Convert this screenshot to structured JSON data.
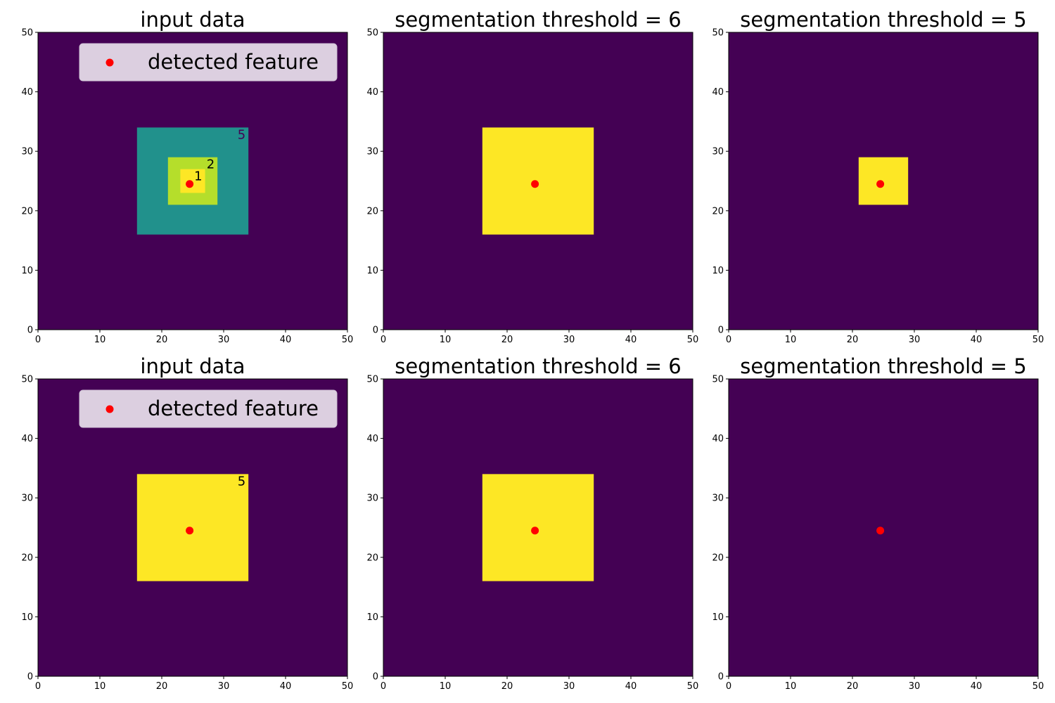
{
  "figure": {
    "layout": "2x3 grid of heatmap panels"
  },
  "colors": {
    "background": "#440154",
    "level_5": "#21918c",
    "level_2": "#b5de2b",
    "level_1": "#fde725",
    "segment": "#fde725",
    "feature": "#ff0000",
    "legend_bg": "#dccfe0",
    "label_dark": "#440154",
    "label_light": "#000000"
  },
  "legend": {
    "label": "detected feature",
    "placement": "upper-right"
  },
  "chart_data": [
    {
      "type": "heatmap",
      "title": "input data",
      "xlim": [
        0,
        50
      ],
      "ylim": [
        0,
        50
      ],
      "xticks": [
        "0",
        "10",
        "20",
        "30",
        "40",
        "50"
      ],
      "yticks": [
        "0",
        "10",
        "20",
        "30",
        "40",
        "50"
      ],
      "grid": false,
      "legend": true,
      "regions": [
        {
          "x": [
            16,
            34
          ],
          "y": [
            16,
            34
          ],
          "color": "level_5",
          "label": "5",
          "label_color": "label_dark"
        },
        {
          "x": [
            21,
            29
          ],
          "y": [
            21,
            29
          ],
          "color": "level_2",
          "label": "2",
          "label_color": "label_light"
        },
        {
          "x": [
            23,
            27
          ],
          "y": [
            23,
            27
          ],
          "color": "level_1",
          "label": "1",
          "label_color": "label_light"
        }
      ],
      "features": [
        {
          "x": 24.5,
          "y": 24.5
        }
      ]
    },
    {
      "type": "heatmap",
      "title": "segmentation threshold = 6",
      "xlim": [
        0,
        50
      ],
      "ylim": [
        0,
        50
      ],
      "xticks": [
        "0",
        "10",
        "20",
        "30",
        "40",
        "50"
      ],
      "yticks": [
        "0",
        "10",
        "20",
        "30",
        "40",
        "50"
      ],
      "grid": false,
      "legend": false,
      "regions": [
        {
          "x": [
            16,
            34
          ],
          "y": [
            16,
            34
          ],
          "color": "segment"
        }
      ],
      "features": [
        {
          "x": 24.5,
          "y": 24.5
        }
      ]
    },
    {
      "type": "heatmap",
      "title": "segmentation threshold = 5",
      "xlim": [
        0,
        50
      ],
      "ylim": [
        0,
        50
      ],
      "xticks": [
        "0",
        "10",
        "20",
        "30",
        "40",
        "50"
      ],
      "yticks": [
        "0",
        "10",
        "20",
        "30",
        "40",
        "50"
      ],
      "grid": false,
      "legend": false,
      "regions": [
        {
          "x": [
            21,
            29
          ],
          "y": [
            21,
            29
          ],
          "color": "segment"
        }
      ],
      "features": [
        {
          "x": 24.5,
          "y": 24.5
        }
      ]
    },
    {
      "type": "heatmap",
      "title": "input data",
      "xlim": [
        0,
        50
      ],
      "ylim": [
        0,
        50
      ],
      "xticks": [
        "0",
        "10",
        "20",
        "30",
        "40",
        "50"
      ],
      "yticks": [
        "0",
        "10",
        "20",
        "30",
        "40",
        "50"
      ],
      "grid": false,
      "legend": true,
      "regions": [
        {
          "x": [
            16,
            34
          ],
          "y": [
            16,
            34
          ],
          "color": "level_1",
          "label": "5",
          "label_color": "label_light"
        }
      ],
      "features": [
        {
          "x": 24.5,
          "y": 24.5
        }
      ]
    },
    {
      "type": "heatmap",
      "title": "segmentation threshold = 6",
      "xlim": [
        0,
        50
      ],
      "ylim": [
        0,
        50
      ],
      "xticks": [
        "0",
        "10",
        "20",
        "30",
        "40",
        "50"
      ],
      "yticks": [
        "0",
        "10",
        "20",
        "30",
        "40",
        "50"
      ],
      "grid": false,
      "legend": false,
      "regions": [
        {
          "x": [
            16,
            34
          ],
          "y": [
            16,
            34
          ],
          "color": "segment"
        }
      ],
      "features": [
        {
          "x": 24.5,
          "y": 24.5
        }
      ]
    },
    {
      "type": "heatmap",
      "title": "segmentation threshold = 5",
      "xlim": [
        0,
        50
      ],
      "ylim": [
        0,
        50
      ],
      "xticks": [
        "0",
        "10",
        "20",
        "30",
        "40",
        "50"
      ],
      "yticks": [
        "0",
        "10",
        "20",
        "30",
        "40",
        "50"
      ],
      "grid": false,
      "legend": false,
      "regions": [],
      "features": [
        {
          "x": 24.5,
          "y": 24.5
        }
      ]
    }
  ]
}
